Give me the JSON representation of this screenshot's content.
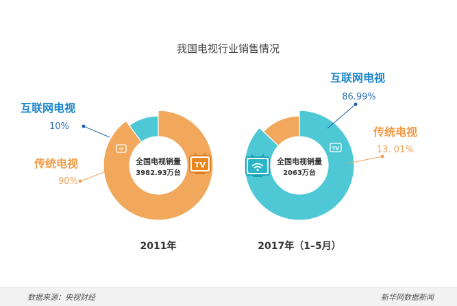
{
  "title": "我国电视行业销售情况",
  "footer": {
    "source": "数据来源：央视财经",
    "brand": "新华网数据新闻"
  },
  "colors": {
    "internet": "#4fc8d6",
    "traditional": "#f2a85c",
    "internet_label": "#1d87c9",
    "traditional_label": "#f39a45",
    "pct_internet": "#2b6fb3",
    "pct_traditional": "#f0a25a"
  },
  "chart_data": [
    {
      "type": "pie",
      "title": "2011年",
      "center_label": "全国电视销量",
      "center_value": "3982.93万台",
      "center_icon": "tv-text-icon",
      "slices": [
        {
          "label": "互联网电视",
          "value": 10,
          "display": "10%"
        },
        {
          "label": "传统电视",
          "value": 90,
          "display": "90%"
        }
      ]
    },
    {
      "type": "pie",
      "title": "2017年（1–5月）",
      "center_label": "全国电视销量",
      "center_value": "2063万台",
      "center_icon": "smart-tv-wifi-icon",
      "slices": [
        {
          "label": "互联网电视",
          "value": 86.99,
          "display": "86.99%"
        },
        {
          "label": "传统电视",
          "value": 13.01,
          "display": "13. 01%"
        }
      ]
    }
  ]
}
